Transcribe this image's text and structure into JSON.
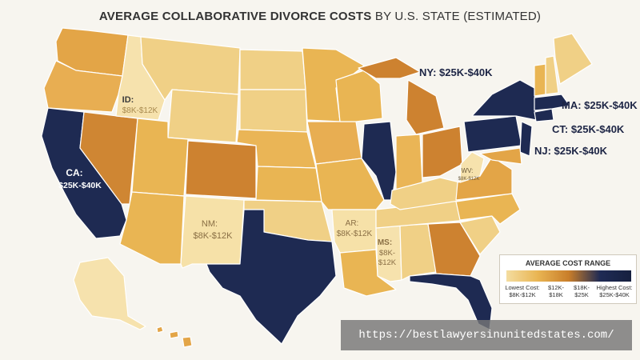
{
  "title": {
    "bold": "AVERAGE COLLABORATIVE DIVORCE COSTS",
    "light": "BY U.S. STATE (ESTIMATED)"
  },
  "callouts": {
    "ny": "NY: $25K-$40K",
    "ma": "MA: $25K-$40K",
    "ct": "CT: $25K-$40K",
    "nj": "NJ: $25K-$40K",
    "ca_code": "CA:",
    "ca_range": "$25K-$40K",
    "id_code": "ID:",
    "id_range": "$8K-$12K",
    "nm_code": "NM:",
    "nm_range": "$8K-$12K",
    "ar_code": "AR:",
    "ar_range": "$8K-$12K",
    "ms_code": "MS:",
    "ms_range1": "$8K-",
    "ms_range2": "$12K",
    "wv_code": "WV:",
    "wv_range": "$8K-$12K"
  },
  "legend": {
    "title": "AVERAGE COST RANGE",
    "labels": [
      {
        "line1": "Lowest Cost:",
        "line2": "$8K-$12K"
      },
      {
        "line1": "$12K-",
        "line2": "$18K"
      },
      {
        "line1": "$18K-",
        "line2": "$25K"
      },
      {
        "line1": "Highest Cost:",
        "line2": "$25K-$40K"
      }
    ]
  },
  "colors": {
    "lowest": "#f4dda0",
    "low": "#e9b553",
    "mid": "#c97e2a",
    "high": "#1f2b55",
    "background": "#f7f5ef"
  },
  "watermark": "https://bestlawyersinunitedstates.com/"
}
